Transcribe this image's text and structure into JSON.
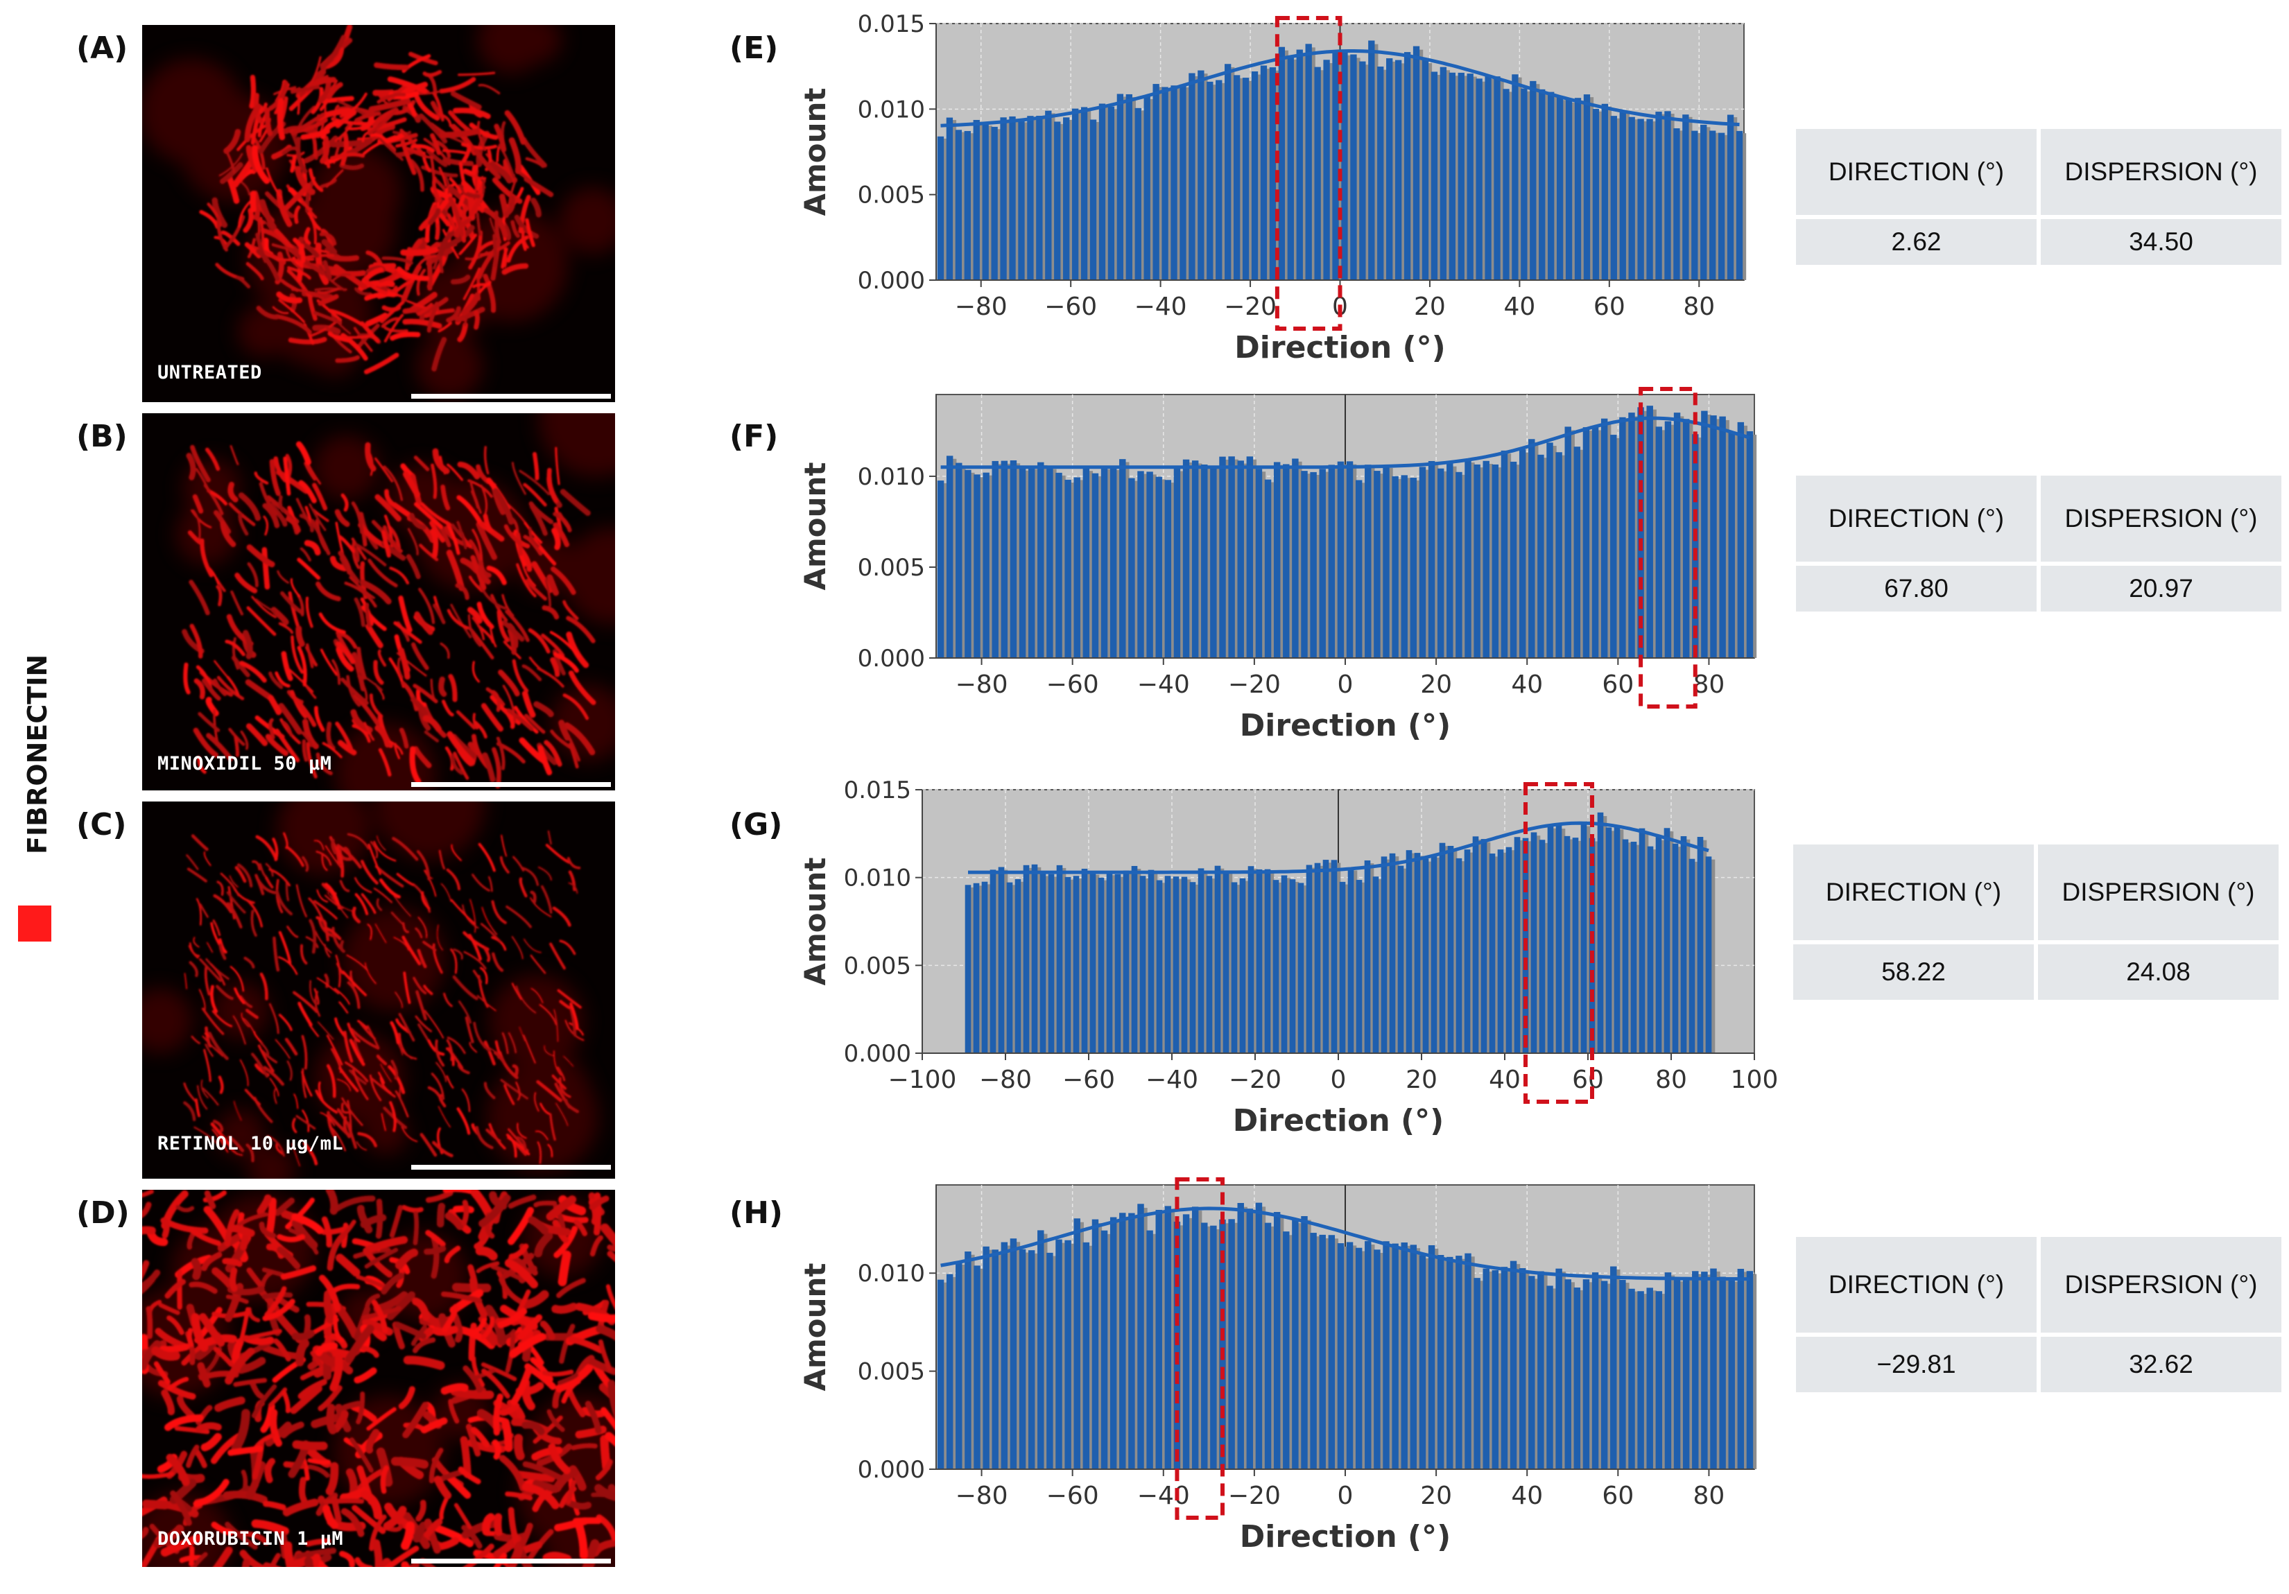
{
  "stain": {
    "label": "FIBRONECTIN",
    "color": "#ff1a1a"
  },
  "colors": {
    "bar": "#1f5fae",
    "bar_shadow": "#8d8d8d",
    "fit": "#1f63b8",
    "plot_bg": "#c3c3c3",
    "highlight": "#d0111b"
  },
  "micrographs": [
    {
      "panel": "(A)",
      "caption": "UNTREATED"
    },
    {
      "panel": "(B)",
      "caption": "MINOXIDIL 50 μM"
    },
    {
      "panel": "(C)",
      "caption": "RETINOL 10 μg/mL"
    },
    {
      "panel": "(D)",
      "caption": "DOXORUBICIN 1 μM"
    }
  ],
  "stats": [
    {
      "direction_label": "DIRECTION (°)",
      "dispersion_label": "DISPERSION (°)",
      "direction": "2.62",
      "dispersion": "34.50"
    },
    {
      "direction_label": "DIRECTION (°)",
      "dispersion_label": "DISPERSION (°)",
      "direction": "67.80",
      "dispersion": "20.97"
    },
    {
      "direction_label": "DIRECTION (°)",
      "dispersion_label": "DISPERSION (°)",
      "direction": "58.22",
      "dispersion": "24.08"
    },
    {
      "direction_label": "DIRECTION (°)",
      "dispersion_label": "DISPERSION (°)",
      "direction": "−29.81",
      "dispersion": "32.62"
    }
  ],
  "chart_data": [
    {
      "panel": "(E)",
      "type": "bar",
      "xlabel": "Direction (°)",
      "ylabel": "Amount",
      "xlim": [
        -90,
        90
      ],
      "ylim": [
        0,
        0.015
      ],
      "xticks": [
        -80,
        -60,
        -40,
        -20,
        0,
        20,
        40,
        60,
        80
      ],
      "yticks": [
        0.0,
        0.005,
        0.01,
        0.015
      ],
      "ytick_labels": [
        "0.000",
        "0.005",
        "0.010",
        "0.015"
      ],
      "bars": {
        "x_start": -89,
        "x_end": 89,
        "step": 2
      },
      "fit": {
        "center": 2.62,
        "sigma": 34.5,
        "baseline": 0.0089,
        "amplitude": 0.0045
      },
      "highlight_range": [
        -14,
        0
      ]
    },
    {
      "panel": "(F)",
      "type": "bar",
      "xlabel": "Direction (°)",
      "ylabel": "Amount",
      "xlim": [
        -90,
        90
      ],
      "ylim": [
        0,
        0.0145
      ],
      "xticks": [
        -80,
        -60,
        -40,
        -20,
        0,
        20,
        40,
        60,
        80
      ],
      "yticks": [
        0.0,
        0.005,
        0.01
      ],
      "ytick_labels": [
        "0.000",
        "0.005",
        "0.010"
      ],
      "bars": {
        "x_start": -89,
        "x_end": 89,
        "step": 2
      },
      "fit": {
        "center": 67.8,
        "sigma": 20.97,
        "baseline": 0.0105,
        "amplitude": 0.0027
      },
      "highlight_range": [
        65,
        77
      ]
    },
    {
      "panel": "(G)",
      "type": "bar",
      "xlabel": "Direction (°)",
      "ylabel": "Amount",
      "xlim": [
        -100,
        100
      ],
      "ylim": [
        0,
        0.015
      ],
      "xticks": [
        -100,
        -80,
        -60,
        -40,
        -20,
        0,
        20,
        40,
        60,
        80,
        100
      ],
      "yticks": [
        0.0,
        0.005,
        0.01,
        0.015
      ],
      "ytick_labels": [
        "0.000",
        "0.005",
        "0.010",
        "0.015"
      ],
      "bars": {
        "x_start": -89,
        "x_end": 89,
        "step": 2
      },
      "fit": {
        "center": 58.22,
        "sigma": 24.08,
        "baseline": 0.0103,
        "amplitude": 0.0028
      },
      "highlight_range": [
        45,
        61
      ]
    },
    {
      "panel": "(H)",
      "type": "bar",
      "xlabel": "Direction (°)",
      "ylabel": "Amount",
      "xlim": [
        -90,
        90
      ],
      "ylim": [
        0,
        0.0145
      ],
      "xticks": [
        -80,
        -60,
        -40,
        -20,
        0,
        20,
        40,
        60,
        80
      ],
      "yticks": [
        0.0,
        0.005,
        0.01
      ],
      "ytick_labels": [
        "0.000",
        "0.005",
        "0.010"
      ],
      "bars": {
        "x_start": -89,
        "x_end": 89,
        "step": 2
      },
      "fit": {
        "center": -29.81,
        "sigma": 32.62,
        "baseline": 0.0097,
        "amplitude": 0.0036
      },
      "highlight_range": [
        -37,
        -27
      ]
    }
  ]
}
